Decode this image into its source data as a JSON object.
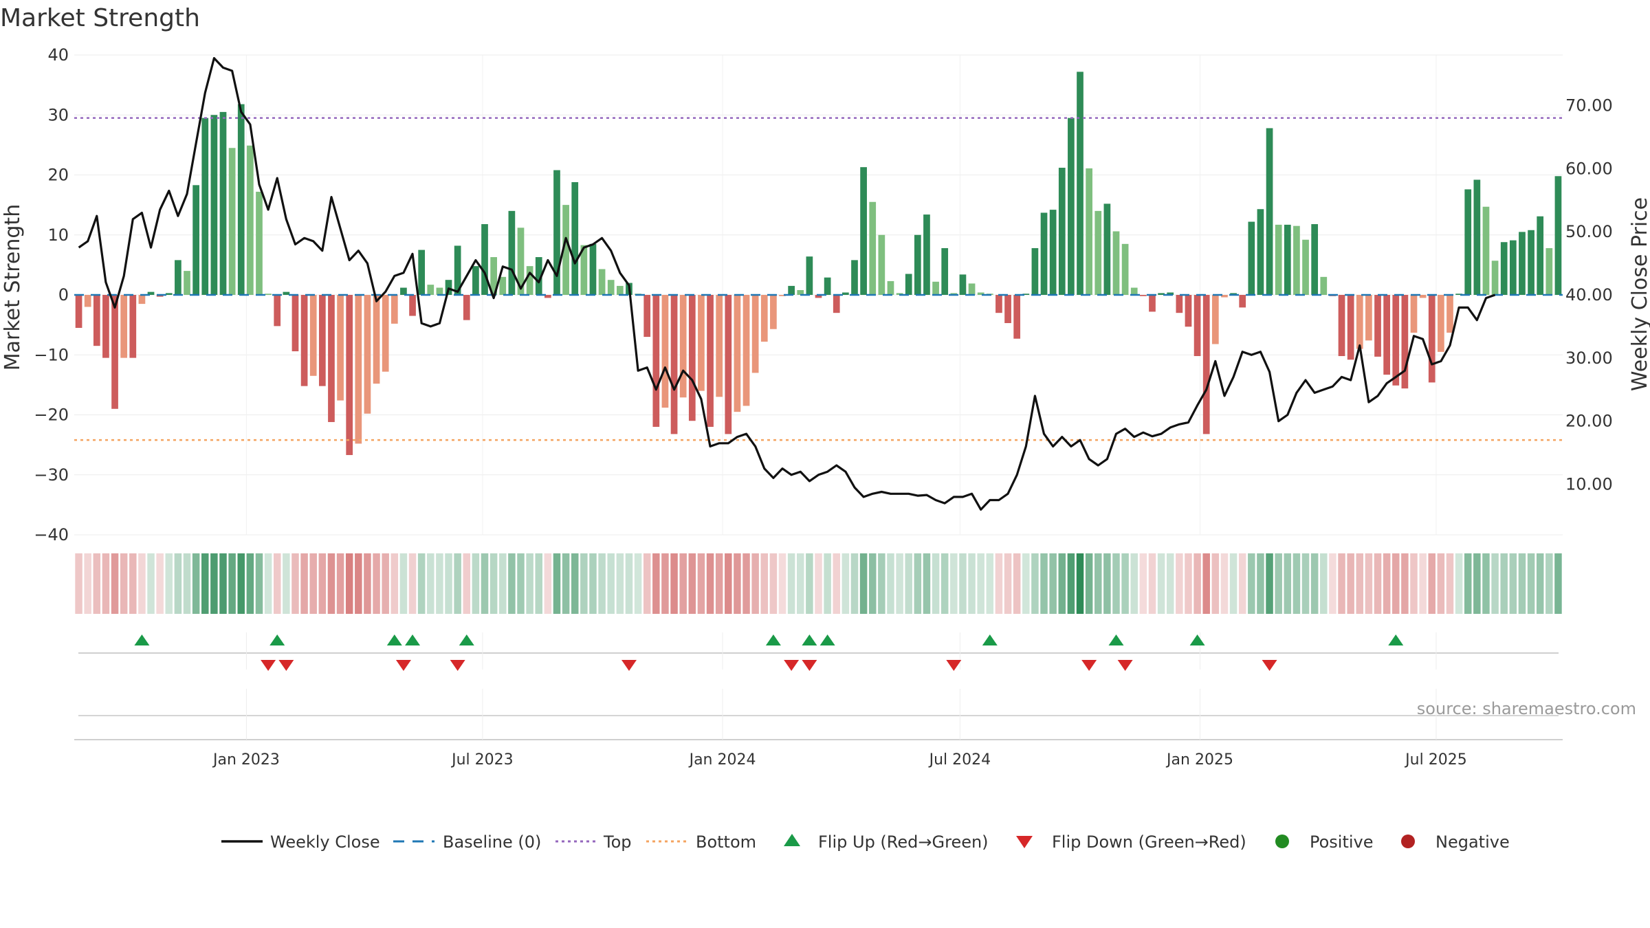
{
  "chart_data": {
    "type": "bar",
    "title": "Market Strength",
    "ylabel": "Market Strength",
    "y2label": "Weekly Close Price",
    "ylim": [
      -40,
      40
    ],
    "y2lim": [
      2,
      78
    ],
    "yticks": [
      40,
      30,
      20,
      10,
      0,
      -10,
      -20,
      -30,
      -40
    ],
    "yticks_text": [
      "40",
      "30",
      "20",
      "10",
      "0",
      "−10",
      "−20",
      "−30",
      "−40"
    ],
    "y2ticks": [
      70,
      60,
      50,
      40,
      30,
      20,
      10
    ],
    "y2ticks_text": [
      "70.00",
      "60.00",
      "50.00",
      "40.00",
      "30.00",
      "20.00",
      "10.00"
    ],
    "x_start": "2022-08-22",
    "x_end": "2025-10-06",
    "xticks": [
      {
        "date": "2023-01-01",
        "label": "Jan 2023"
      },
      {
        "date": "2023-07-01",
        "label": "Jul 2023"
      },
      {
        "date": "2024-01-01",
        "label": "Jan 2024"
      },
      {
        "date": "2024-07-01",
        "label": "Jul 2024"
      },
      {
        "date": "2025-01-01",
        "label": "Jan 2025"
      },
      {
        "date": "2025-07-01",
        "label": "Jul 2025"
      }
    ],
    "top_level": 29.5,
    "bottom_level": -24.2,
    "baseline": 0,
    "strength": [
      -5.5,
      -2,
      -8.5,
      -10.5,
      -19,
      -10.5,
      -10.5,
      -1.5,
      0.5,
      -0.3,
      0.3,
      5.8,
      4,
      18.3,
      29.5,
      30,
      30.5,
      24.5,
      31.8,
      24.9,
      17.2,
      0.2,
      -5.2,
      0.5,
      -9.4,
      -15.2,
      -13.5,
      -15.2,
      -21.2,
      -17.6,
      -26.7,
      -24.8,
      -19.8,
      -14.8,
      -12.8,
      -4.8,
      1.2,
      -3.5,
      7.5,
      1.7,
      1.2,
      2.5,
      8.2,
      -4.2,
      4.8,
      11.8,
      6.3,
      3,
      14,
      11.2,
      4.8,
      6.3,
      -0.5,
      20.8,
      15,
      18.8,
      8.3,
      8.5,
      4.3,
      2.5,
      1.5,
      2,
      0.2,
      -7,
      -22,
      -18.8,
      -23.2,
      -17.1,
      -21,
      -16,
      -22,
      -17,
      -23.2,
      -19.5,
      -18.5,
      -13,
      -7.8,
      -5.7,
      -0.2,
      1.5,
      0.8,
      6.4,
      -0.5,
      2.9,
      -3,
      0.4,
      5.8,
      21.3,
      15.5,
      10,
      2.3,
      0.3,
      3.5,
      10,
      13.4,
      2.2,
      7.8,
      0.3,
      3.4,
      1.9,
      0.4,
      0.2,
      -3,
      -4.7,
      -7.3,
      0.2,
      7.8,
      13.7,
      14.2,
      21.2,
      29.5,
      37.2,
      21.1,
      14,
      15.2,
      10.6,
      8.5,
      1.2,
      -0.2,
      -2.8,
      0.3,
      0.4,
      -3,
      -5.3,
      -10.2,
      -23.2,
      -8.2,
      -0.4,
      0.3,
      -2.1,
      12.2,
      14.3,
      27.8,
      11.7,
      11.7,
      11.5,
      9.2,
      11.8,
      3,
      -0.2,
      -10.2,
      -10.8,
      -9,
      -7.6,
      -10.3,
      -13.3,
      -15.1,
      -15.6,
      -6.3,
      -0.5,
      -14.6,
      -9.5,
      -6.3,
      0.2,
      17.6,
      19.2,
      14.7,
      5.7,
      8.8,
      9.1,
      10.5,
      10.8,
      13.1,
      7.8,
      19.8
    ],
    "weekly_close": [
      47.5,
      48.5,
      52.5,
      42,
      38,
      43,
      52,
      53,
      47.5,
      53.5,
      56.5,
      52.5,
      56,
      64,
      72,
      77.5,
      76,
      75.5,
      69,
      67,
      57.5,
      53.5,
      58.5,
      52,
      48,
      49,
      48.5,
      47,
      55.5,
      50.5,
      45.5,
      47,
      45,
      39,
      40.5,
      43,
      43.5,
      46.5,
      35.5,
      35,
      35.5,
      41,
      40.5,
      43,
      45.5,
      43.5,
      39.5,
      44.5,
      44,
      41,
      43.5,
      42,
      45.5,
      43,
      49,
      45,
      47.5,
      48,
      49,
      47,
      43.5,
      41.5,
      28,
      28.5,
      25,
      28.5,
      25,
      28,
      26.5,
      23.5,
      16,
      16.5,
      16.5,
      17.5,
      18,
      16,
      12.5,
      11,
      12.5,
      11.5,
      12,
      10.5,
      11.5,
      12,
      13,
      12,
      9.5,
      8,
      8.5,
      8.8,
      8.5,
      8.5,
      8.5,
      8.2,
      8.3,
      7.5,
      7,
      8,
      8,
      8.5,
      6,
      7.5,
      7.5,
      8.5,
      11.5,
      16,
      24,
      18,
      16,
      17.5,
      16,
      17,
      14,
      13,
      14,
      18,
      18.8,
      17.5,
      18.2,
      17.6,
      18,
      19,
      19.5,
      19.8,
      22.5,
      25,
      29.5,
      24,
      27,
      31,
      30.5,
      31,
      27.8,
      20,
      21,
      24.5,
      26.5,
      24.5,
      25,
      25.5,
      27,
      26.5,
      32,
      23,
      24,
      26,
      27,
      28,
      33.5,
      33,
      29,
      29.5,
      32,
      38,
      38,
      36,
      39.5,
      40
    ],
    "flip_up": [
      7,
      22,
      35,
      37,
      43,
      77,
      81,
      83,
      101,
      115,
      124,
      146
    ],
    "flip_down": [
      21,
      23,
      36,
      42,
      61,
      79,
      81,
      97,
      112,
      116,
      132
    ],
    "strip_label": "",
    "source": "source: sharemaestro.com",
    "legend": [
      {
        "key": "close",
        "label": "Weekly Close"
      },
      {
        "key": "baseline",
        "label": "Baseline (0)"
      },
      {
        "key": "top",
        "label": "Top"
      },
      {
        "key": "bottom",
        "label": "Bottom"
      },
      {
        "key": "flip_up",
        "label": "Flip Up (Red→Green)"
      },
      {
        "key": "flip_down",
        "label": "Flip Down (Green→Red)"
      },
      {
        "key": "positive",
        "label": "Positive"
      },
      {
        "key": "negative",
        "label": "Negative"
      }
    ],
    "colors": {
      "pos_strong": "#2e8b57",
      "pos_light": "#7fbf7f",
      "neg_strong": "#cd5c5c",
      "neg_light": "#e9967a",
      "close_line": "#111111",
      "baseline": "#1f77b4",
      "top": "#9467bd",
      "bottom": "#f4a460",
      "flip_up": "#1a9a48",
      "flip_down": "#d62728",
      "positive_dot": "#228b22",
      "negative_dot": "#b22222"
    }
  }
}
